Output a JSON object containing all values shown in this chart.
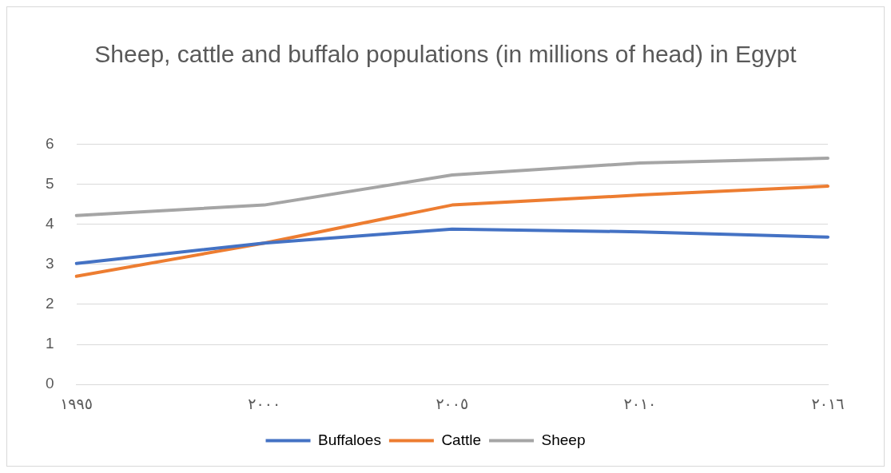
{
  "chart_data": {
    "type": "line",
    "title": "Sheep, cattle and buffalo populations (in millions of head) in Egypt",
    "categories": [
      "١٩٩٥",
      "٢٠٠٠",
      "٢٠٠٥",
      "٢٠١٠",
      "٢٠١٦"
    ],
    "series": [
      {
        "name": "Buffaloes",
        "color": "#4472c4",
        "values": [
          3.02,
          3.53,
          3.88,
          3.81,
          3.68
        ]
      },
      {
        "name": "Cattle",
        "color": "#ed7d31",
        "values": [
          2.7,
          3.53,
          4.48,
          4.73,
          4.95
        ]
      },
      {
        "name": "Sheep",
        "color": "#a5a5a5",
        "values": [
          4.22,
          4.48,
          5.23,
          5.53,
          5.65
        ]
      }
    ],
    "ylim": [
      0,
      6
    ],
    "yticks": [
      0,
      1,
      2,
      3,
      4,
      5,
      6
    ],
    "grid": "y",
    "legend": "bottom",
    "marker": "none",
    "line_style": "solid"
  }
}
